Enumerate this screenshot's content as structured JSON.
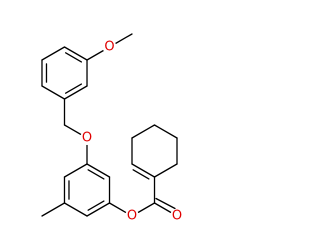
{
  "atoms": [
    {
      "label": "O"
    },
    {
      "label": "O"
    },
    {
      "label": "O"
    },
    {
      "label": "O"
    }
  ]
}
